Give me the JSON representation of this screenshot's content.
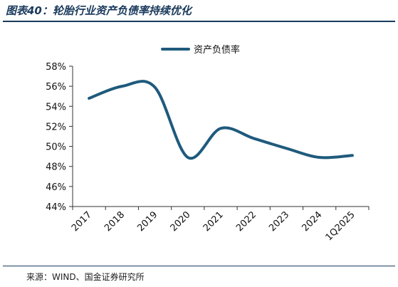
{
  "header": {
    "title": "图表40：轮胎行业资产负债率持续优化"
  },
  "footer": {
    "source": "来源：WIND、国金证券研究所"
  },
  "colors": {
    "line": "#1f5a7c",
    "axis": "#333333",
    "brand": "#1a3a5c"
  },
  "chart_data": {
    "type": "line",
    "categories": [
      "2017",
      "2018",
      "2019",
      "2020",
      "2021",
      "2022",
      "2023",
      "2024",
      "1Q2025"
    ],
    "series": [
      {
        "name": "资产负债率",
        "values": [
          54.8,
          56.0,
          55.9,
          48.9,
          51.8,
          50.8,
          49.8,
          48.9,
          49.1
        ]
      }
    ],
    "ylim": [
      44,
      58
    ],
    "yticks": [
      "44%",
      "46%",
      "48%",
      "50%",
      "52%",
      "54%",
      "56%",
      "58%"
    ],
    "legend_position": "top-center",
    "grid": false
  }
}
